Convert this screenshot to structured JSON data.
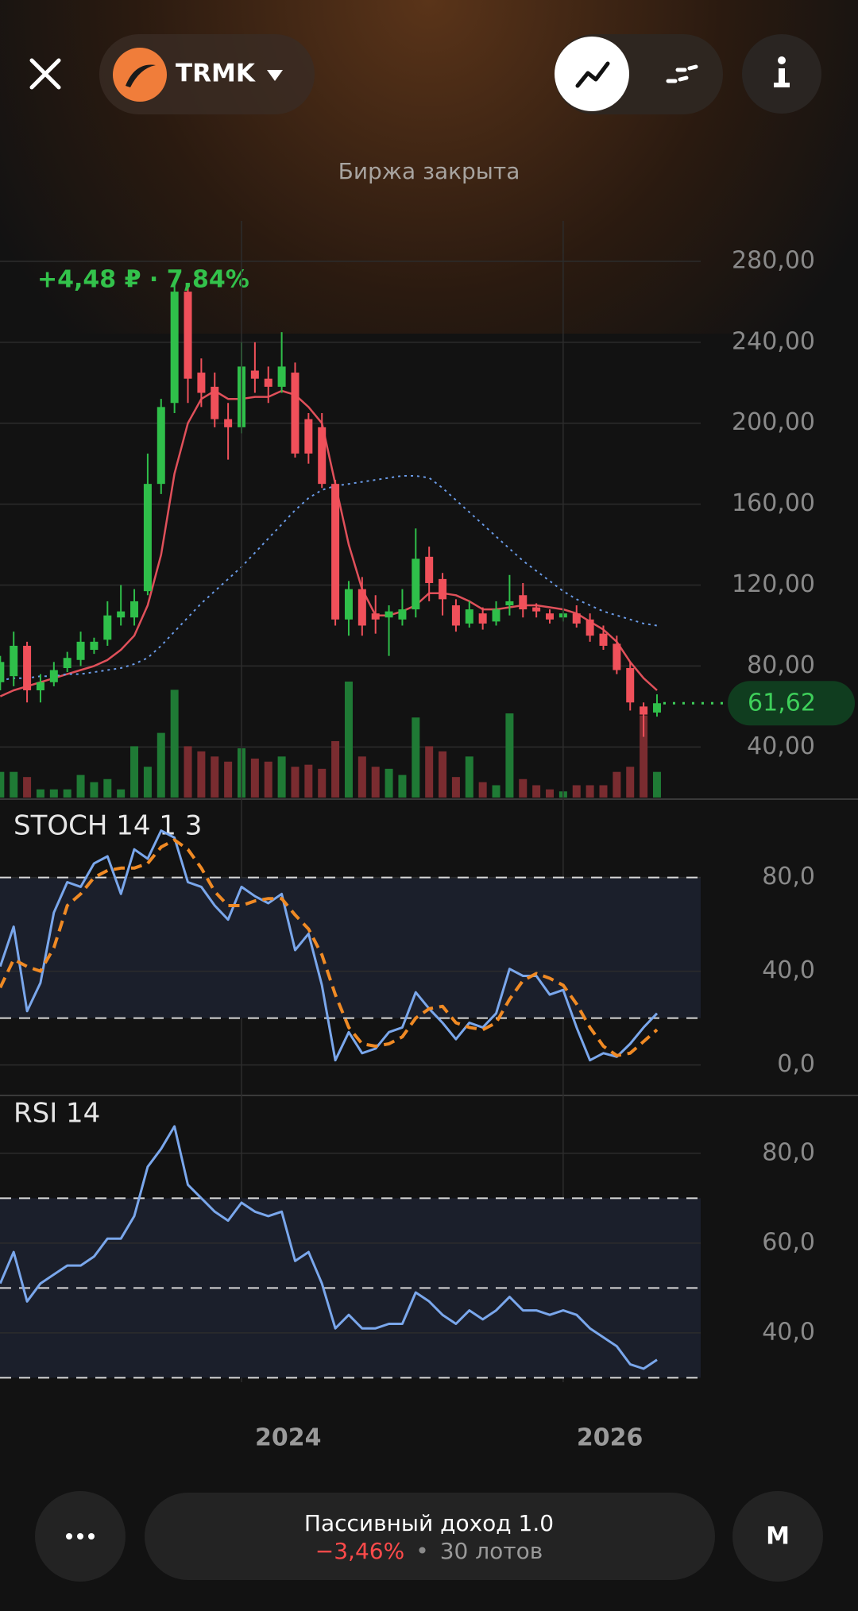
{
  "header": {
    "ticker": "TRMK",
    "status": "Биржа закрыта"
  },
  "chart_data": [
    {
      "type": "candlestick",
      "annotation": "+4,48 ₽ · 7,84%",
      "open": [
        72,
        75,
        90,
        68,
        72,
        79,
        83,
        88,
        93,
        104,
        104,
        117,
        170,
        210,
        265,
        225,
        218,
        202,
        198,
        226,
        222,
        218,
        225,
        202,
        198,
        170,
        103,
        118,
        106,
        104,
        103,
        108,
        134,
        123,
        110,
        101,
        106,
        102,
        110,
        115,
        109,
        106,
        104,
        106,
        103,
        96,
        91,
        79,
        60,
        57
      ],
      "high": [
        85,
        97,
        92,
        76,
        82,
        87,
        97,
        94,
        112,
        120,
        118,
        185,
        212,
        270,
        268,
        232,
        225,
        210,
        240,
        240,
        228,
        245,
        230,
        205,
        205,
        172,
        122,
        124,
        115,
        110,
        118,
        148,
        139,
        126,
        113,
        112,
        109,
        112,
        125,
        121,
        111,
        108,
        108,
        110,
        106,
        100,
        95,
        82,
        62,
        66
      ],
      "low": [
        68,
        70,
        62,
        62,
        70,
        77,
        80,
        86,
        90,
        100,
        100,
        115,
        165,
        205,
        210,
        208,
        198,
        182,
        195,
        215,
        210,
        215,
        183,
        180,
        168,
        100,
        95,
        95,
        96,
        85,
        100,
        104,
        112,
        105,
        97,
        99,
        98,
        100,
        105,
        104,
        104,
        101,
        102,
        99,
        92,
        88,
        76,
        58,
        45,
        55
      ],
      "close": [
        82,
        90,
        68,
        72,
        78,
        84,
        92,
        92,
        105,
        107,
        112,
        170,
        208,
        265,
        222,
        215,
        202,
        198,
        228,
        222,
        218,
        228,
        185,
        185,
        170,
        103,
        118,
        100,
        103,
        107,
        108,
        133,
        121,
        113,
        100,
        108,
        101,
        108,
        112,
        108,
        107,
        103,
        106,
        101,
        95,
        90,
        78,
        62,
        56,
        61.62
      ],
      "volume": [
        25,
        25,
        20,
        8,
        8,
        8,
        22,
        15,
        18,
        8,
        50,
        30,
        63,
        105,
        50,
        45,
        40,
        35,
        48,
        38,
        35,
        40,
        30,
        32,
        28,
        55,
        113,
        40,
        30,
        28,
        22,
        78,
        50,
        45,
        20,
        40,
        15,
        12,
        82,
        18,
        12,
        8,
        6,
        12,
        12,
        12,
        25,
        30,
        80,
        25
      ],
      "overlays": [
        {
          "color": "#e0505a",
          "style": "solid",
          "values": [
            65,
            68,
            70,
            72,
            74,
            76,
            78,
            80,
            83,
            88,
            95,
            110,
            135,
            175,
            200,
            212,
            216,
            212,
            212,
            213,
            213,
            216,
            214,
            208,
            200,
            170,
            140,
            118,
            105,
            105,
            107,
            110,
            116,
            116,
            115,
            112,
            108,
            108,
            109,
            110,
            110,
            109,
            108,
            106,
            102,
            98,
            92,
            82,
            74,
            68
          ]
        },
        {
          "color": "#6a9be8",
          "style": "dotted",
          "values": [
            73,
            74,
            74,
            75,
            75,
            76,
            76,
            77,
            78,
            79,
            81,
            84,
            90,
            97,
            104,
            111,
            117,
            123,
            129,
            136,
            143,
            150,
            157,
            163,
            167,
            169,
            170,
            171,
            172,
            173,
            174,
            174,
            173,
            168,
            162,
            156,
            150,
            144,
            138,
            132,
            127,
            122,
            117,
            113,
            110,
            107,
            105,
            103,
            101,
            100
          ]
        }
      ],
      "up_color": "#2fbf4a",
      "down_color": "#f0505a",
      "volume_up_color": "#1f7a35",
      "volume_down_color": "#7a2c30",
      "last": {
        "value": 61.62,
        "label": "61,62"
      },
      "ylim": [
        15,
        300
      ],
      "yticks": [
        {
          "value": 280,
          "label": "280,00"
        },
        {
          "value": 240,
          "label": "240,00"
        },
        {
          "value": 200,
          "label": "200,00"
        },
        {
          "value": 160,
          "label": "160,00"
        },
        {
          "value": 120,
          "label": "120,00"
        },
        {
          "value": 80,
          "label": "80,00"
        },
        {
          "value": 40,
          "label": "40,00"
        }
      ],
      "xticks": [
        {
          "value": 18,
          "label": "2024"
        },
        {
          "value": 42,
          "label": "2026"
        }
      ],
      "grid": true
    },
    {
      "type": "line",
      "title": "STOCH 14 1 3",
      "series": [
        {
          "color": "#7aa7ec",
          "style": "solid",
          "values": [
            42,
            59,
            23,
            35,
            65,
            78,
            76,
            86,
            89,
            73,
            92,
            88,
            100,
            97,
            78,
            76,
            68,
            62,
            76,
            72,
            69,
            73,
            49,
            56,
            34,
            2,
            14,
            5,
            7,
            14,
            16,
            31,
            24,
            18,
            11,
            18,
            16,
            22,
            41,
            38,
            38,
            30,
            32,
            16,
            2,
            5,
            3.5,
            9,
            16,
            22
          ]
        },
        {
          "color": "#f08a24",
          "style": "dashed",
          "values": [
            33,
            45,
            42,
            40,
            50,
            68,
            73,
            80,
            83,
            84,
            84,
            86,
            93,
            96,
            92,
            84,
            74,
            68,
            68,
            70,
            71,
            71,
            64,
            58,
            47,
            30,
            16,
            9,
            8,
            9,
            12,
            20,
            24,
            25,
            18,
            16,
            15,
            18,
            28,
            36,
            39,
            37,
            34,
            26,
            16,
            8,
            4,
            5,
            10,
            15
          ]
        }
      ],
      "ylim": [
        -12,
        108
      ],
      "yticks": [
        {
          "value": 80,
          "label": "80,0"
        },
        {
          "value": 40,
          "label": "40,0"
        },
        {
          "value": 0,
          "label": "0,0"
        }
      ],
      "levels": [
        80,
        20
      ]
    },
    {
      "type": "line",
      "title": "RSI 14",
      "series": [
        {
          "color": "#7aa7ec",
          "style": "solid",
          "values": [
            51,
            58,
            47,
            51,
            53,
            55,
            55,
            57,
            61,
            61,
            66,
            77,
            81,
            86,
            73,
            70,
            67,
            65,
            69,
            67,
            66,
            67,
            56,
            58,
            51,
            41,
            44,
            41,
            41,
            42,
            42,
            49,
            47,
            44,
            42,
            45,
            43,
            45,
            48,
            45,
            45,
            44,
            45,
            44,
            41,
            39,
            37,
            33,
            32,
            34
          ]
        }
      ],
      "ylim": [
        29,
        92
      ],
      "yticks": [
        {
          "value": 80,
          "label": "80,0"
        },
        {
          "value": 60,
          "label": "60,0"
        },
        {
          "value": 40,
          "label": "40,0"
        }
      ],
      "levels": [
        70,
        50,
        30
      ]
    }
  ],
  "footer": {
    "strategy": "Пассивный доход 1.0",
    "change": "−3,46%",
    "separator": "•",
    "lots": "30 лотов",
    "timeframe": "M"
  }
}
